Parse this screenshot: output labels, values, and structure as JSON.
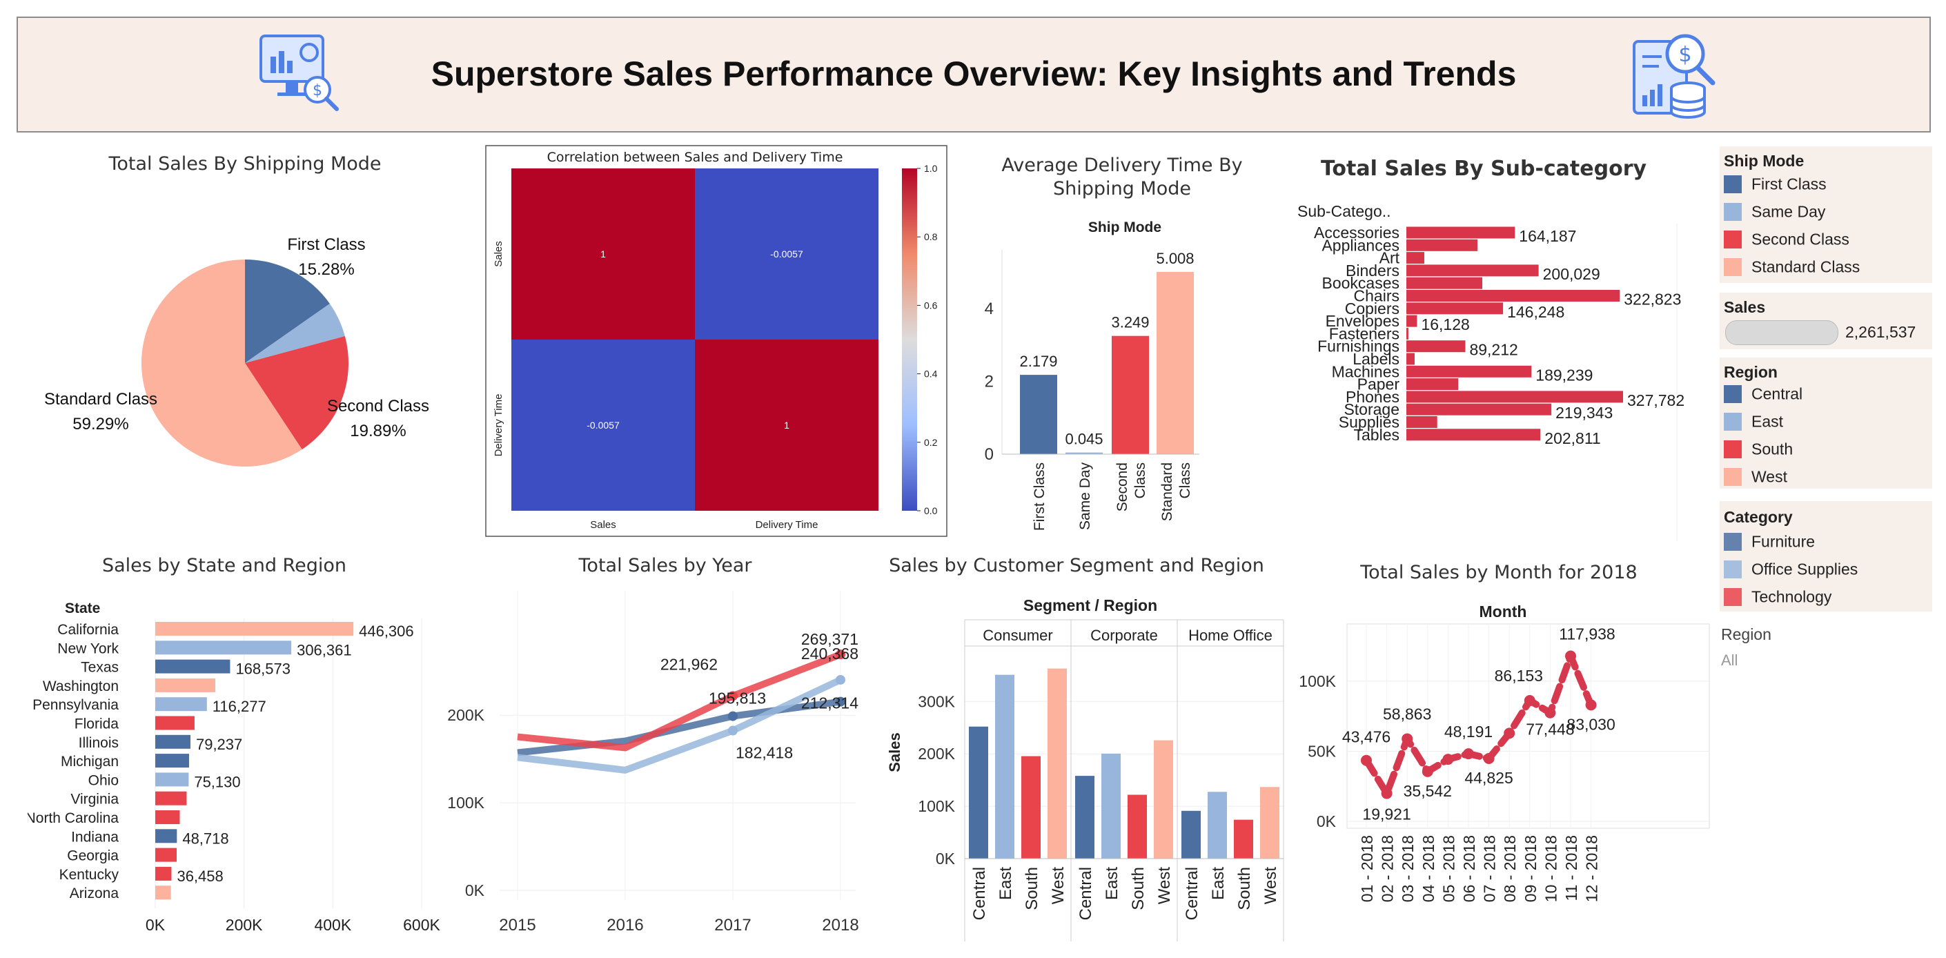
{
  "header": {
    "title": "Superstore Sales Performance Overview: Key Insights and Trends"
  },
  "colors": {
    "first_class": "#4a6fa0",
    "same_day": "#98b6dc",
    "second_class": "#e9434b",
    "standard_class": "#fdb29e",
    "central": "#4a6fa0",
    "east": "#98b6dc",
    "south": "#e9434b",
    "west": "#fdb29e",
    "subcat_bar": "#d9354a",
    "month_line": "#d6384e",
    "heat_red": "#b40426",
    "heat_blue": "#3c4ec2",
    "header_bg": "#f8ede7"
  },
  "charts": {
    "pie": {
      "title": "Total Sales By Shipping Mode"
    },
    "heatmap": {
      "title": "Correlation between Sales and Delivery Time"
    },
    "delivery": {
      "title_line1": "Average Delivery Time By",
      "title_line2": "Shipping Mode",
      "header": "Ship Mode"
    },
    "subcat": {
      "title": "Total Sales By Sub-category",
      "header": "Sub-Catego.."
    },
    "state": {
      "title": "Sales by State and Region",
      "header": "State"
    },
    "year": {
      "title": "Total Sales by Year"
    },
    "segment": {
      "title": "Sales by Customer Segment and Region",
      "header": "Segment / Region",
      "ylabel": "Sales"
    },
    "month": {
      "title": "Total Sales by Month for 2018",
      "header": "Month"
    }
  },
  "legends": {
    "ship_mode": {
      "title": "Ship Mode",
      "items": [
        "First Class",
        "Same Day",
        "Second Class",
        "Standard Class"
      ]
    },
    "sales": {
      "title": "Sales",
      "value": "2,261,537"
    },
    "region": {
      "title": "Region",
      "items": [
        "Central",
        "East",
        "South",
        "West"
      ]
    },
    "category": {
      "title": "Category",
      "items": [
        "Furniture",
        "Office Supplies",
        "Technology"
      ]
    },
    "region_filter": {
      "title": "Region",
      "value": "All"
    }
  },
  "chart_data": [
    {
      "id": "pie",
      "type": "pie",
      "title": "Total Sales By Shipping Mode",
      "slices": [
        {
          "name": "First Class",
          "value": 15.28,
          "label": "15.28%"
        },
        {
          "name": "Same Day",
          "value": 5.54,
          "label": ""
        },
        {
          "name": "Second Class",
          "value": 19.89,
          "label": "19.89%"
        },
        {
          "name": "Standard Class",
          "value": 59.29,
          "label": "59.29%"
        }
      ]
    },
    {
      "id": "heatmap",
      "type": "heatmap",
      "title": "Correlation between Sales and Delivery Time",
      "rows": [
        "Sales",
        "Delivery Time"
      ],
      "cols": [
        "Sales",
        "Delivery Time"
      ],
      "values": [
        [
          1,
          -0.0057
        ],
        [
          -0.0057,
          1
        ]
      ],
      "cell_labels": [
        [
          "1",
          "-0.0057"
        ],
        [
          "-0.0057",
          "1"
        ]
      ],
      "colorbar_ticks": [
        "1.0",
        "0.8",
        "0.6",
        "0.4",
        "0.2",
        "0.0"
      ]
    },
    {
      "id": "delivery",
      "type": "bar",
      "title": "Average Delivery Time By Shipping Mode",
      "categories": [
        "First Class",
        "Same Day",
        "Second Class",
        "Standard Class"
      ],
      "category_lines": [
        [
          "First Class"
        ],
        [
          "Same Day"
        ],
        [
          "Second",
          "Class"
        ],
        [
          "Standard",
          "Class"
        ]
      ],
      "values": [
        2.179,
        0.045,
        3.249,
        5.008
      ],
      "labels": [
        "2.179",
        "0.045",
        "3.249",
        "5.008"
      ],
      "yticks": [
        "0",
        "2",
        "4"
      ],
      "ylim": [
        0,
        5.5
      ]
    },
    {
      "id": "subcat",
      "type": "bar",
      "orientation": "horizontal",
      "title": "Total Sales By Sub-category",
      "categories": [
        "Accessories",
        "Appliances",
        "Art",
        "Binders",
        "Bookcases",
        "Chairs",
        "Copiers",
        "Envelopes",
        "Fasteners",
        "Furnishings",
        "Labels",
        "Machines",
        "Paper",
        "Phones",
        "Storage",
        "Supplies",
        "Tables"
      ],
      "values": [
        164187,
        107532,
        27119,
        200029,
        114880,
        322823,
        146248,
        16128,
        3024,
        89212,
        12486,
        189239,
        78479,
        327782,
        219343,
        46674,
        202811
      ],
      "labels": [
        "164,187",
        "",
        "",
        "200,029",
        "",
        "322,823",
        "146,248",
        "16,128",
        "",
        "89,212",
        "",
        "189,239",
        "",
        "327,782",
        "219,343",
        "",
        "202,811"
      ]
    },
    {
      "id": "state",
      "type": "bar",
      "orientation": "horizontal",
      "title": "Sales by State and Region",
      "categories": [
        "California",
        "New York",
        "Texas",
        "Washington",
        "Pennsylvania",
        "Florida",
        "Illinois",
        "Michigan",
        "Ohio",
        "Virginia",
        "North Carolina",
        "Indiana",
        "Georgia",
        "Kentucky",
        "Arizona"
      ],
      "values": [
        446306,
        306361,
        168573,
        135207,
        116277,
        88437,
        79237,
        76136,
        75130,
        70637,
        55165,
        48718,
        48219,
        36458,
        35273
      ],
      "regions": [
        "West",
        "East",
        "Central",
        "West",
        "East",
        "South",
        "Central",
        "Central",
        "East",
        "South",
        "South",
        "Central",
        "South",
        "South",
        "West"
      ],
      "labels": [
        "446,306",
        "306,361",
        "168,573",
        "",
        "116,277",
        "",
        "79,237",
        "",
        "75,130",
        "",
        "",
        "48,718",
        "",
        "36,458",
        ""
      ],
      "xticks": [
        "0K",
        "200K",
        "400K",
        "600K"
      ],
      "xlim": [
        0,
        600000
      ]
    },
    {
      "id": "year",
      "type": "line",
      "title": "Total Sales by Year",
      "x": [
        2015,
        2016,
        2017,
        2018
      ],
      "series": [
        {
          "name": "Furniture",
          "values": [
            157193,
            170518,
            198901,
            215387
          ],
          "labels": [
            "",
            "",
            "",
            ""
          ]
        },
        {
          "name": "Office Supplies",
          "values": [
            151776,
            137233,
            182418,
            240368
          ],
          "labels": [
            "",
            "",
            "182,418",
            "240,368"
          ]
        },
        {
          "name": "Technology",
          "values": [
            175278,
            162780,
            221962,
            269371
          ],
          "labels": [
            "",
            "",
            "221,962",
            "269,371"
          ]
        }
      ],
      "extra_labels": [
        "195,813",
        "212,314"
      ],
      "yticks": [
        "0K",
        "100K",
        "200K"
      ],
      "ylim": [
        0,
        290000
      ]
    },
    {
      "id": "segment",
      "type": "bar",
      "title": "Sales by Customer Segment and Region",
      "segments": [
        "Consumer",
        "Corporate",
        "Home Office"
      ],
      "regions": [
        "Central",
        "East",
        "South",
        "West"
      ],
      "values": [
        [
          252031,
          350908,
          195581,
          362881
        ],
        [
          157996,
          200409,
          121885,
          225855
        ],
        [
          91213,
          127463,
          74255,
          136722
        ]
      ],
      "ylabel": "Sales",
      "yticks": [
        "0K",
        "100K",
        "200K",
        "300K"
      ],
      "ylim": [
        0,
        390000
      ]
    },
    {
      "id": "month",
      "type": "line",
      "title": "Total Sales by Month for 2018",
      "x": [
        "01 - 2018",
        "02 - 2018",
        "03 - 2018",
        "04 - 2018",
        "05 - 2018",
        "06 - 2018",
        "07 - 2018",
        "08 - 2018",
        "09 - 2018",
        "10 - 2018",
        "11 - 2018",
        "12 - 2018"
      ],
      "values": [
        43476,
        19921,
        58863,
        35542,
        44261,
        48191,
        44825,
        62837,
        86153,
        77448,
        117938,
        83030
      ],
      "labels": [
        "43,476",
        "19,921",
        "58,863",
        "35,542",
        "",
        "48,191",
        "44,825",
        "",
        "86,153",
        "77,448",
        "117,938",
        "83,030"
      ],
      "yticks": [
        "0K",
        "50K",
        "100K"
      ],
      "ylim": [
        0,
        130000
      ]
    }
  ]
}
